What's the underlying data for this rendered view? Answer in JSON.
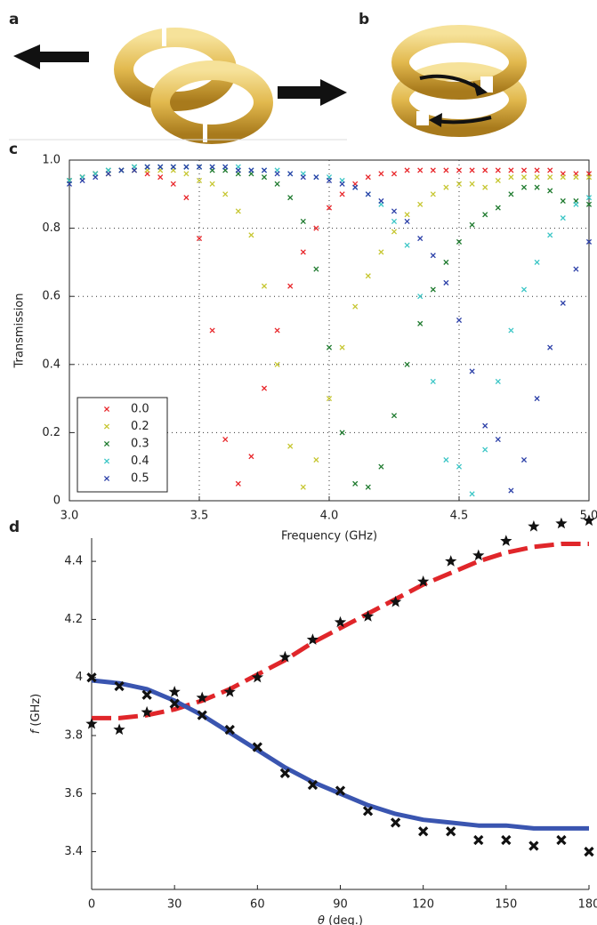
{
  "illustrations": [
    {
      "label": "a"
    },
    {
      "label": "b"
    }
  ],
  "chart_data": [
    {
      "type": "scatter",
      "panel_label": "c",
      "x_label": "Frequency (GHz)",
      "y_label": "Transmission",
      "x": [
        3,
        3.05,
        3.1,
        3.15,
        3.2,
        3.25,
        3.3,
        3.35,
        3.4,
        3.45,
        3.5,
        3.55,
        3.6,
        3.65,
        3.7,
        3.75,
        3.8,
        3.85,
        3.9,
        3.95,
        4,
        4.05,
        4.1,
        4.15,
        4.2,
        4.25,
        4.3,
        4.35,
        4.4,
        4.45,
        4.5,
        4.55,
        4.6,
        4.65,
        4.7,
        4.75,
        4.8,
        4.85,
        4.9,
        4.95,
        5
      ],
      "series": [
        {
          "name": "0.0",
          "color": "#e8262a",
          "values": [
            0.94,
            0.95,
            0.96,
            0.96,
            0.97,
            0.97,
            0.96,
            0.95,
            0.93,
            0.89,
            0.77,
            0.5,
            0.18,
            0.05,
            0.13,
            0.33,
            0.5,
            0.63,
            0.73,
            0.8,
            0.86,
            0.9,
            0.93,
            0.95,
            0.96,
            0.96,
            0.97,
            0.97,
            0.97,
            0.97,
            0.97,
            0.97,
            0.97,
            0.97,
            0.97,
            0.97,
            0.97,
            0.97,
            0.96,
            0.96,
            0.96
          ]
        },
        {
          "name": "0.2",
          "color": "#c6c630",
          "values": [
            0.94,
            0.95,
            0.96,
            0.96,
            0.97,
            0.97,
            0.97,
            0.97,
            0.97,
            0.96,
            0.94,
            0.93,
            0.9,
            0.85,
            0.78,
            0.63,
            0.4,
            0.16,
            0.04,
            0.12,
            0.3,
            0.45,
            0.57,
            0.66,
            0.73,
            0.79,
            0.84,
            0.87,
            0.9,
            0.92,
            0.93,
            0.93,
            0.92,
            0.94,
            0.95,
            0.95,
            0.95,
            0.95,
            0.95,
            0.95,
            0.95
          ]
        },
        {
          "name": "0.3",
          "color": "#1e7a2e",
          "values": [
            0.94,
            0.95,
            0.96,
            0.97,
            0.97,
            0.98,
            0.98,
            0.98,
            0.98,
            0.98,
            0.98,
            0.97,
            0.97,
            0.96,
            0.96,
            0.95,
            0.93,
            0.89,
            0.82,
            0.68,
            0.45,
            0.2,
            0.05,
            0.04,
            0.1,
            0.25,
            0.4,
            0.52,
            0.62,
            0.7,
            0.76,
            0.81,
            0.84,
            0.86,
            0.9,
            0.92,
            0.92,
            0.91,
            0.88,
            0.88,
            0.87
          ]
        },
        {
          "name": "0.4",
          "color": "#3cc6c6",
          "values": [
            0.94,
            0.95,
            0.96,
            0.97,
            0.97,
            0.98,
            0.98,
            0.98,
            0.98,
            0.98,
            0.98,
            0.98,
            0.98,
            0.98,
            0.97,
            0.97,
            0.97,
            0.96,
            0.96,
            0.95,
            0.95,
            0.94,
            0.92,
            0.9,
            0.87,
            0.82,
            0.75,
            0.6,
            0.35,
            0.12,
            0.1,
            0.02,
            0.15,
            0.35,
            0.5,
            0.62,
            0.7,
            0.78,
            0.83,
            0.87,
            0.89
          ]
        },
        {
          "name": "0.5",
          "color": "#2c40a8",
          "values": [
            0.93,
            0.94,
            0.95,
            0.96,
            0.97,
            0.97,
            0.98,
            0.98,
            0.98,
            0.98,
            0.98,
            0.98,
            0.98,
            0.97,
            0.97,
            0.97,
            0.96,
            0.96,
            0.95,
            0.95,
            0.94,
            0.93,
            0.92,
            0.9,
            0.88,
            0.85,
            0.82,
            0.77,
            0.72,
            0.64,
            0.53,
            0.38,
            0.22,
            0.18,
            0.03,
            0.12,
            0.3,
            0.45,
            0.58,
            0.68,
            0.76
          ]
        }
      ],
      "xlim": [
        3,
        5
      ],
      "xticks": [
        {
          "value": 3,
          "label": "3.0"
        },
        3.5,
        {
          "value": 4,
          "label": "4.0"
        },
        4.5,
        {
          "value": 5,
          "label": "5.0"
        }
      ],
      "ylim": [
        0,
        1
      ],
      "yticks": [
        0,
        0.2,
        0.4,
        0.6,
        0.8,
        {
          "value": 1,
          "label": "1.0"
        }
      ],
      "grid": true,
      "legend": "lower left"
    },
    {
      "type": "line",
      "panel_label": "d",
      "x_label": {
        "symbol": "θ",
        "unit": "(deg.)"
      },
      "y_label": {
        "symbol": "f",
        "unit": "(GHz)"
      },
      "x": [
        0,
        10,
        20,
        30,
        40,
        50,
        60,
        70,
        80,
        90,
        100,
        110,
        120,
        130,
        140,
        150,
        160,
        170,
        180
      ],
      "series": [
        {
          "color": "#e0262a",
          "style": "dashed",
          "values": [
            3.86,
            3.86,
            3.87,
            3.89,
            3.92,
            3.96,
            4.01,
            4.06,
            4.12,
            4.17,
            4.22,
            4.27,
            4.32,
            4.36,
            4.4,
            4.43,
            4.45,
            4.46,
            4.46
          ]
        },
        {
          "color": "#3a55b0",
          "style": "solid",
          "values": [
            3.99,
            3.98,
            3.96,
            3.92,
            3.87,
            3.81,
            3.75,
            3.69,
            3.64,
            3.6,
            3.56,
            3.53,
            3.51,
            3.5,
            3.49,
            3.49,
            3.48,
            3.48,
            3.48
          ]
        },
        {
          "color": "#111111",
          "marker": "star",
          "values": [
            3.84,
            3.82,
            3.88,
            3.95,
            3.93,
            3.95,
            4.0,
            4.07,
            4.13,
            4.19,
            4.21,
            4.26,
            4.33,
            4.4,
            4.42,
            4.47,
            4.52,
            4.53,
            4.54
          ]
        },
        {
          "color": "#111111",
          "marker": "x",
          "values": [
            4.0,
            3.97,
            3.94,
            3.91,
            3.87,
            3.82,
            3.76,
            3.67,
            3.63,
            3.61,
            3.54,
            3.5,
            3.47,
            3.47,
            3.44,
            3.44,
            3.42,
            3.44,
            3.4
          ]
        }
      ],
      "xlim": [
        0,
        180
      ],
      "xticks": [
        0,
        30,
        60,
        90,
        120,
        150,
        180
      ],
      "ylim": [
        3.27,
        4.48
      ],
      "yticks": [
        3.4,
        3.6,
        3.8,
        4,
        4.2,
        4.4
      ],
      "grid": false
    }
  ]
}
